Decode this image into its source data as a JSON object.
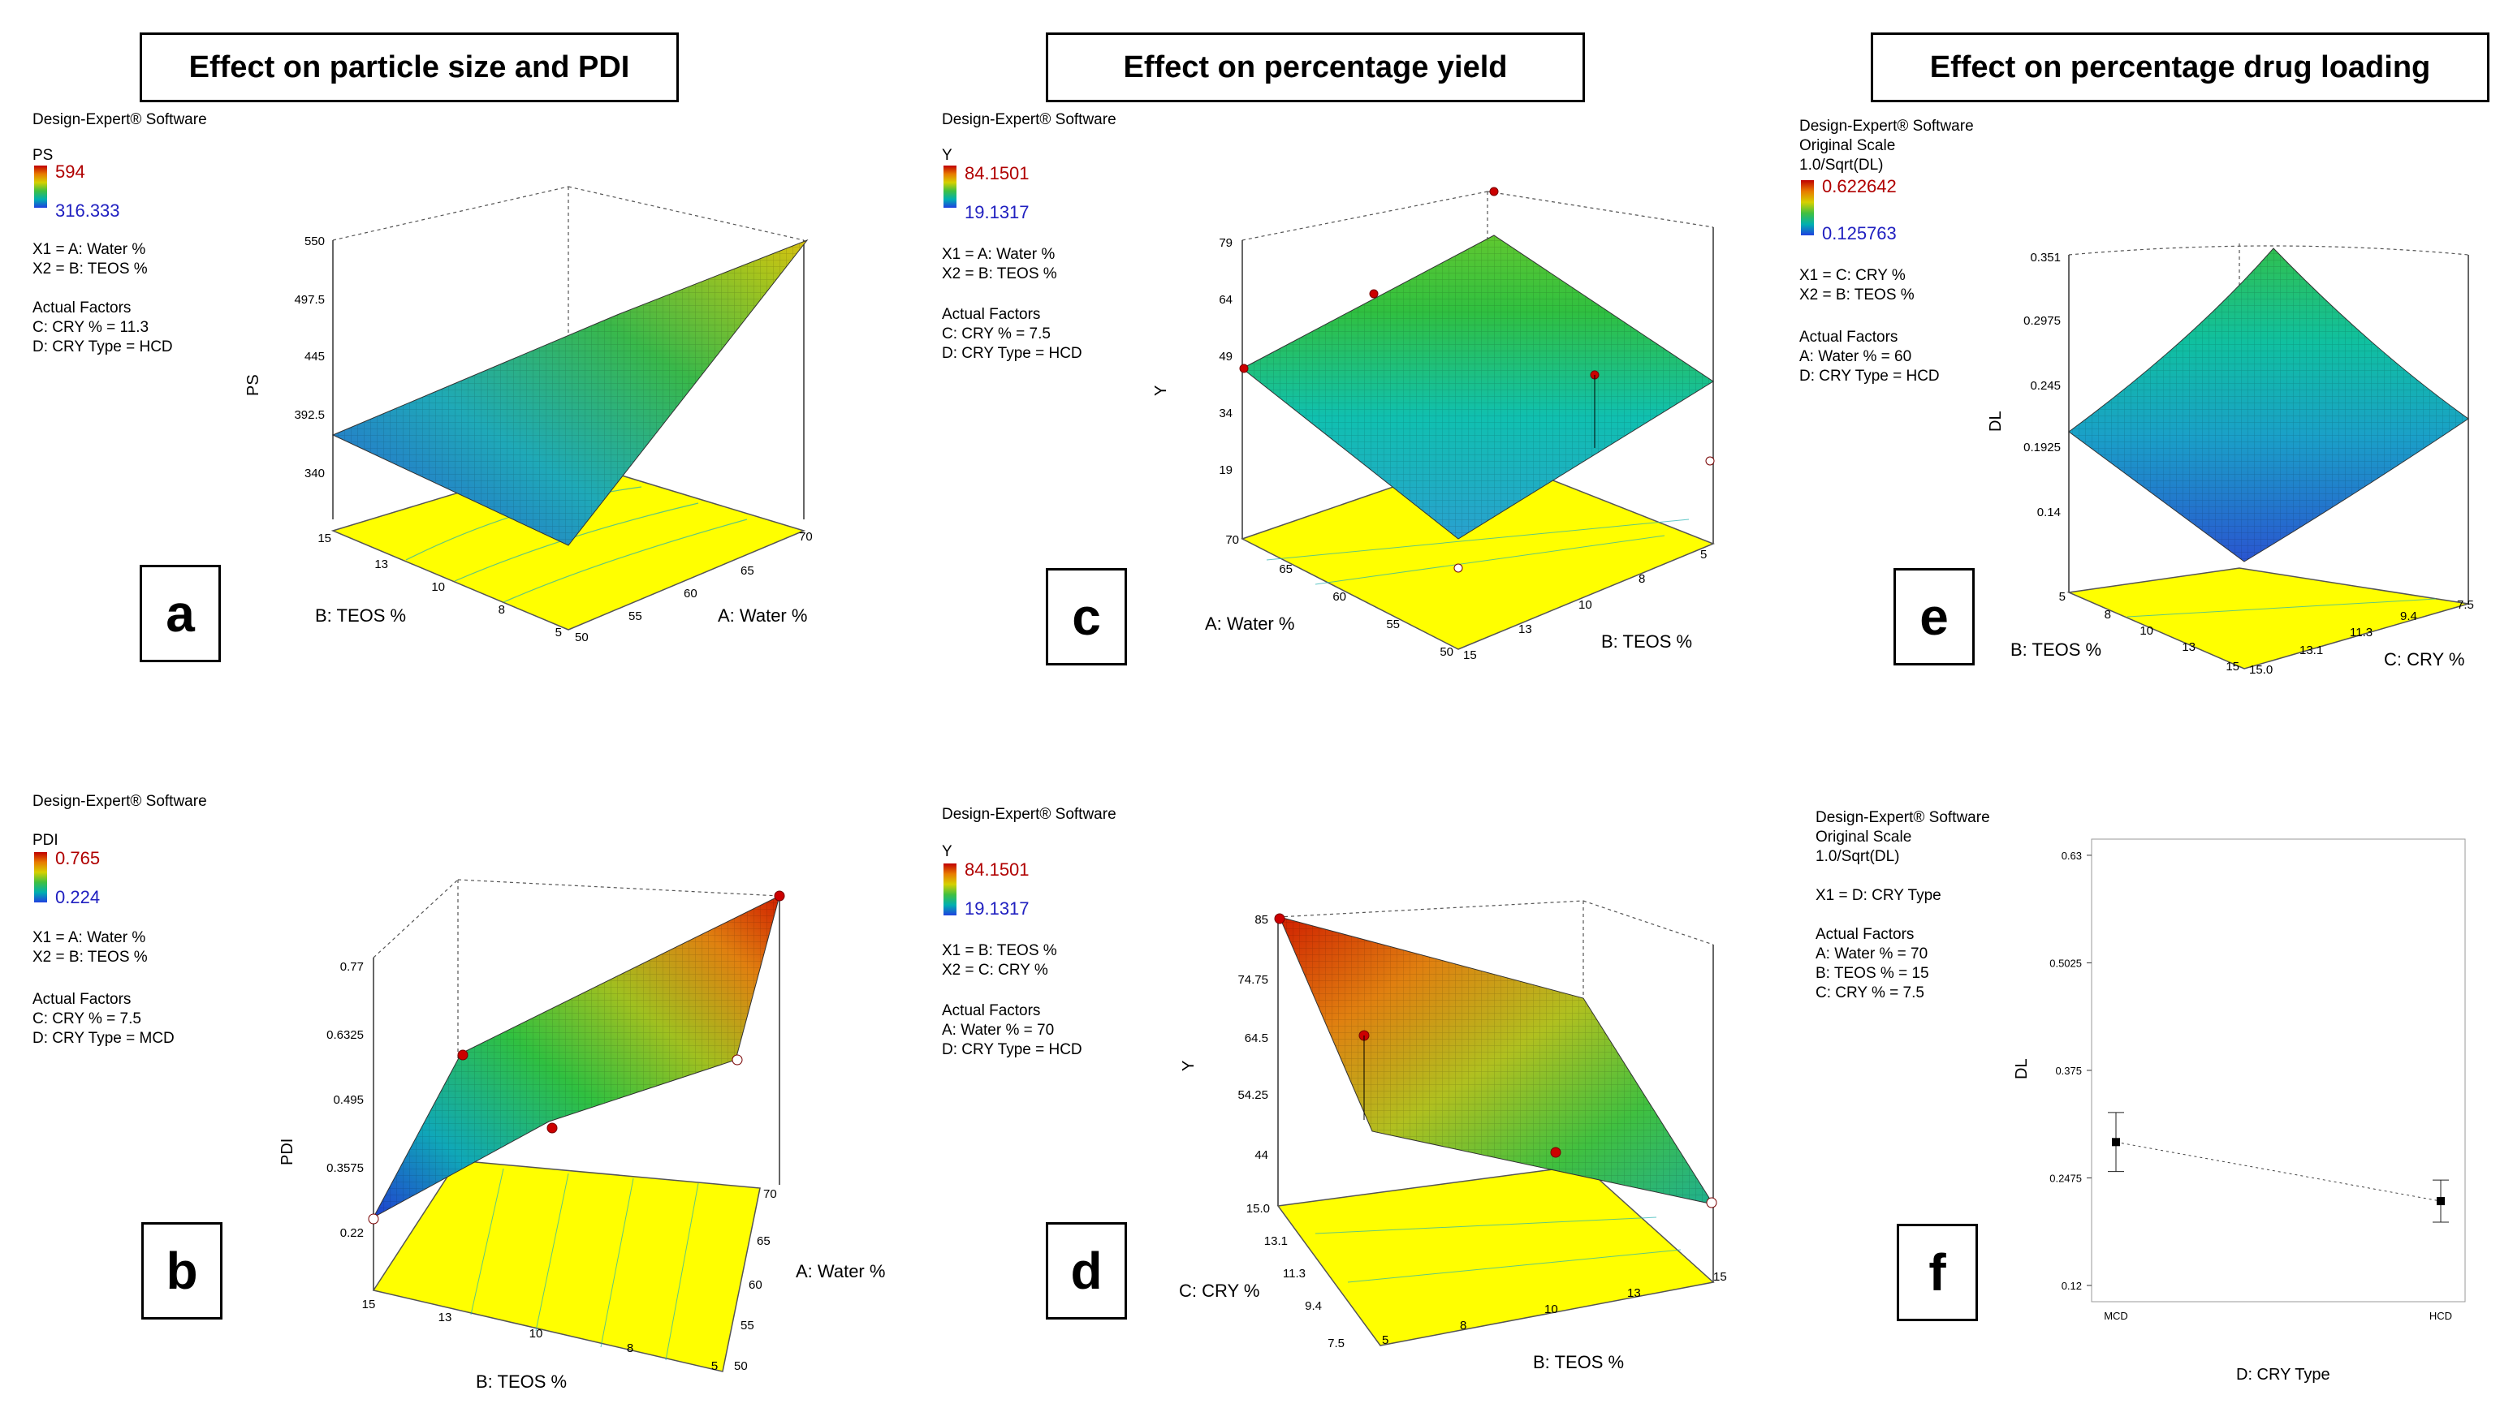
{
  "headers": [
    "Effect on particle size and PDI",
    "Effect on percentage yield",
    "Effect on percentage drug loading"
  ],
  "colors": {
    "surface_low": "#2040e0",
    "surface_mid": "#40c040",
    "surface_high": "#e03000",
    "floor": "#ffff00",
    "point": "#cc0000",
    "legend_high_text": "#b00000",
    "legend_low_text": "#2020c0"
  },
  "legends": {
    "a": {
      "software": "Design-Expert® Software",
      "response": "PS",
      "high": "594",
      "low": "316.333",
      "x1": "X1 = A: Water %",
      "x2": "X2 = B: TEOS %",
      "factors_title": "Actual Factors",
      "f1": "C: CRY % = 11.3",
      "f2": "D: CRY Type = HCD"
    },
    "c": {
      "software": "Design-Expert® Software",
      "response": "Y",
      "high": "84.1501",
      "low": "19.1317",
      "x1": "X1 = A: Water %",
      "x2": "X2 = B: TEOS %",
      "factors_title": "Actual Factors",
      "f1": "C: CRY % = 7.5",
      "f2": "D: CRY Type = HCD"
    },
    "e": {
      "software": "Design-Expert® Software",
      "scale1": "Original Scale",
      "scale2": "1.0/Sqrt(DL)",
      "high": "0.622642",
      "low": "0.125763",
      "x1": "X1 = C: CRY %",
      "x2": "X2 = B: TEOS %",
      "factors_title": "Actual Factors",
      "f1": "A: Water % = 60",
      "f2": "D: CRY Type = HCD"
    },
    "b": {
      "software": "Design-Expert® Software",
      "response": "PDI",
      "high": "0.765",
      "low": "0.224",
      "x1": "X1 = A: Water %",
      "x2": "X2 = B: TEOS %",
      "factors_title": "Actual Factors",
      "f1": "C: CRY % = 7.5",
      "f2": "D: CRY Type = MCD"
    },
    "d": {
      "software": "Design-Expert® Software",
      "response": "Y",
      "high": "84.1501",
      "low": "19.1317",
      "x1": "X1 = B: TEOS %",
      "x2": "X2 = C: CRY %",
      "factors_title": "Actual Factors",
      "f1": "A: Water % = 70",
      "f2": "D: CRY Type = HCD"
    },
    "f": {
      "software": "Design-Expert® Software",
      "scale1": "Original Scale",
      "scale2": "1.0/Sqrt(DL)",
      "x1": "X1 = D: CRY Type",
      "factors_title": "Actual Factors",
      "f1": "A: Water % = 70",
      "f2": "B: TEOS % = 15",
      "f3": "C: CRY % = 7.5"
    }
  },
  "panel_labels": [
    "a",
    "c",
    "e",
    "b",
    "d",
    "f"
  ],
  "chart_data": [
    {
      "type": "surface3d",
      "panel": "a",
      "zlabel": "PS",
      "z_ticks": [
        "550",
        "497.5",
        "445",
        "392.5",
        "340"
      ],
      "xlabel": "A: Water %",
      "x_ticks": [
        "50",
        "55",
        "60",
        "65",
        "70"
      ],
      "ylabel": "B: TEOS %",
      "y_ticks": [
        "5",
        "8",
        "10",
        "13",
        "15"
      ]
    },
    {
      "type": "surface3d",
      "panel": "c",
      "zlabel": "Y",
      "z_ticks": [
        "79",
        "64",
        "49",
        "34",
        "19"
      ],
      "xlabel": "A: Water %",
      "x_ticks": [
        "70",
        "65",
        "60",
        "55",
        "50"
      ],
      "ylabel": "B: TEOS %",
      "y_ticks": [
        "15",
        "13",
        "10",
        "8",
        "5"
      ]
    },
    {
      "type": "surface3d",
      "panel": "e",
      "zlabel": "DL",
      "z_ticks": [
        "0.351",
        "0.2975",
        "0.245",
        "0.1925",
        "0.14"
      ],
      "xlabel": "B: TEOS %",
      "x_ticks": [
        "5",
        "8",
        "10",
        "13",
        "15"
      ],
      "ylabel": "C: CRY %",
      "y_ticks": [
        "15.0",
        "13.1",
        "11.3",
        "9.4",
        "7.5"
      ]
    },
    {
      "type": "surface3d",
      "panel": "b",
      "zlabel": "PDI",
      "z_ticks": [
        "0.77",
        "0.6325",
        "0.495",
        "0.3575",
        "0.22"
      ],
      "xlabel": "B: TEOS %",
      "x_ticks": [
        "15",
        "13",
        "10",
        "8",
        "5"
      ],
      "ylabel": "A: Water %",
      "y_ticks": [
        "50",
        "55",
        "60",
        "65",
        "70"
      ]
    },
    {
      "type": "surface3d",
      "panel": "d",
      "zlabel": "Y",
      "z_ticks": [
        "85",
        "74.75",
        "64.5",
        "54.25",
        "44"
      ],
      "xlabel": "B: TEOS %",
      "x_ticks": [
        "5",
        "8",
        "10",
        "13",
        "15"
      ],
      "ylabel": "C: CRY %",
      "y_ticks": [
        "7.5",
        "9.4",
        "11.3",
        "13.1",
        "15.0"
      ]
    },
    {
      "type": "interaction",
      "panel": "f",
      "xlabel": "D: CRY Type",
      "ylabel": "DL",
      "categories": [
        "MCD",
        "HCD"
      ],
      "y_ticks": [
        "0.12",
        "0.2475",
        "0.375",
        "0.5025",
        "0.63"
      ],
      "ylim": [
        0.12,
        0.63
      ],
      "values": [
        0.29,
        0.22
      ],
      "errors": [
        0.035,
        0.025
      ]
    }
  ]
}
